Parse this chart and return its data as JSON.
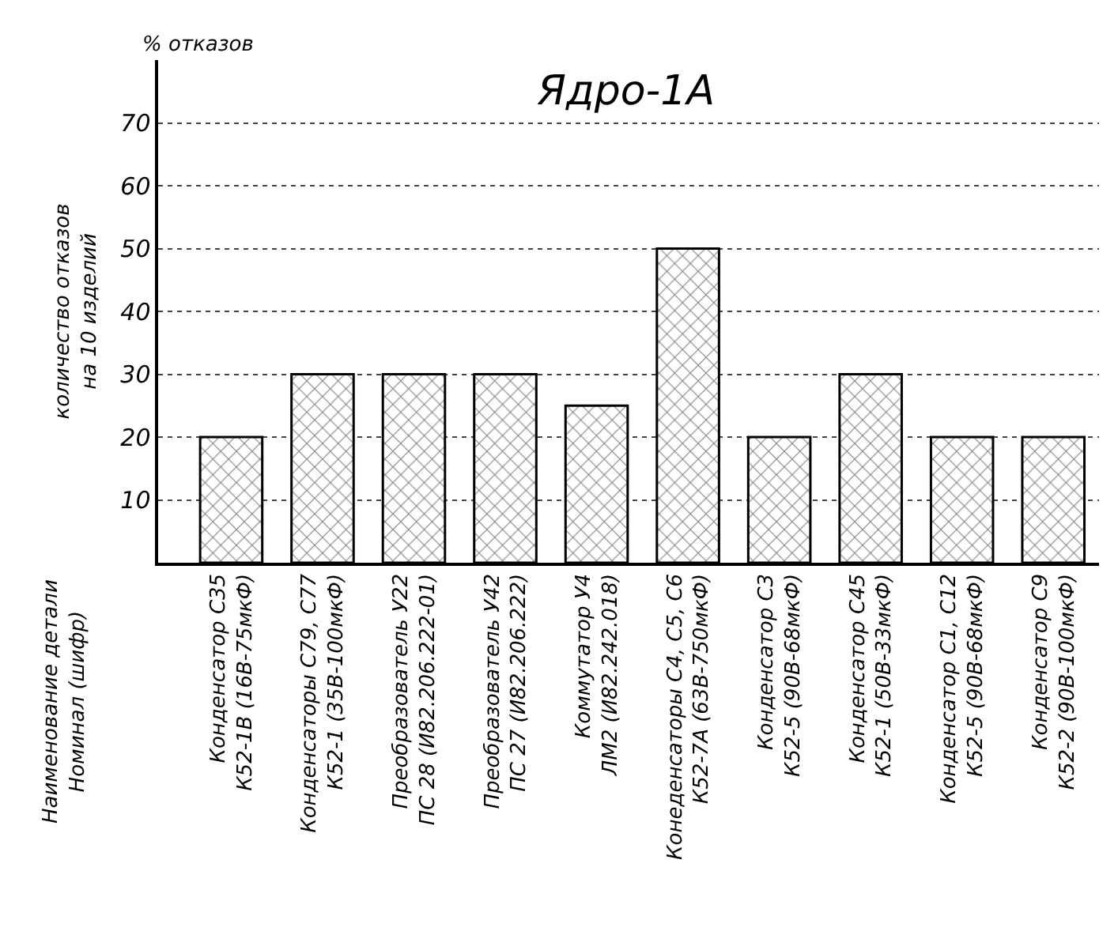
{
  "chart_data": {
    "type": "bar",
    "title": "Ядро-1А",
    "ylabel": "количество отказов\nна 10 изделий",
    "annotations": [
      "% отказов",
      "Наименование детали\nНоминал (шифр)"
    ],
    "categories": [
      "Конденсатор С35\nК52-1В (16В-75мкФ)",
      "Конденсаторы С79, С77\nК52-1 (35В-100мкФ)",
      "Преобразователь У22\nПС 28 (И82.206.222-01)",
      "Преобразователь У42\nПС 27 (И82.206.222)",
      "Коммутатор У4\nЛМ2 (И82.242.018)",
      "Конеденсаторы С4, С5, С6\nК52-7А (63В-750мкФ)",
      "Конденсатор С3\nК52-5 (90В-68мкФ)",
      "Конденсатор С45\nК52-1 (50В-33мкФ)",
      "Конденсатор С1, С12\nК52-5 (90В-68мкФ)",
      "Конденсатор С9\nК52-2 (90В-100мкФ)"
    ],
    "values": [
      20,
      30,
      30,
      30,
      25,
      50,
      20,
      30,
      20,
      20
    ],
    "color": "#000000",
    "ylim": [
      0,
      80
    ],
    "yticks": [
      10,
      20,
      30,
      40,
      50,
      60,
      70
    ],
    "grid": "y"
  }
}
